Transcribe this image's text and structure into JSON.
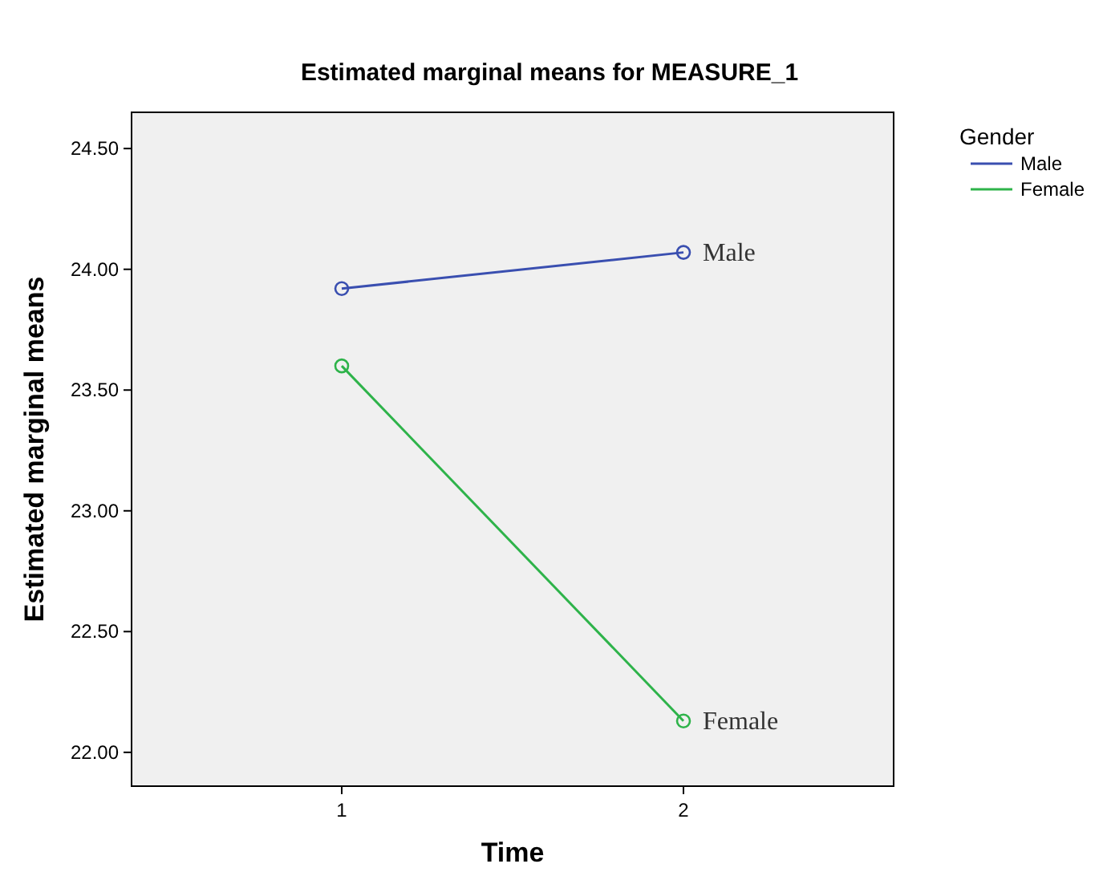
{
  "chart_data": {
    "type": "line",
    "title": "Estimated marginal means for MEASURE_1",
    "xlabel": "Time",
    "ylabel": "Estimated marginal means",
    "legend_title": "Gender",
    "categories": [
      "1",
      "2"
    ],
    "series": [
      {
        "name": "Male",
        "color": "#3a4fb0",
        "values": [
          23.92,
          24.07
        ]
      },
      {
        "name": "Female",
        "color": "#2eb34a",
        "values": [
          23.6,
          22.13
        ]
      }
    ],
    "ylim": [
      21.86,
      24.65
    ],
    "yticks": [
      {
        "value": 22,
        "label": "22.00"
      },
      {
        "value": 22.5,
        "label": "22.50"
      },
      {
        "value": 23,
        "label": "23.00"
      },
      {
        "value": 23.5,
        "label": "23.50"
      },
      {
        "value": 24,
        "label": "24.00"
      },
      {
        "value": 24.5,
        "label": "24.50"
      }
    ],
    "grid": false,
    "legend": "top right",
    "marker": "circle",
    "line_style": "solid"
  }
}
